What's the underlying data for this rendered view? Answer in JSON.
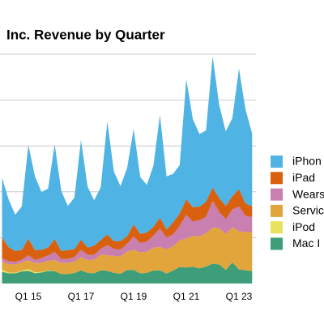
{
  "chart_data": {
    "type": "stacked-area",
    "title": "Inc. Revenue by Quarter",
    "categories": [
      null,
      null,
      null,
      null,
      "Q1 15",
      null,
      null,
      null,
      null,
      null,
      null,
      null,
      "Q1 17",
      null,
      null,
      null,
      null,
      null,
      null,
      null,
      "Q1 19",
      null,
      null,
      null,
      null,
      null,
      null,
      null,
      "Q1 21",
      null,
      null,
      null,
      null,
      null,
      null,
      null,
      "Q1 23",
      null,
      null
    ],
    "ylim": [
      0,
      125
    ],
    "yticks": [
      25,
      50,
      75,
      100,
      125
    ],
    "grid": true,
    "series": [
      {
        "name": "iPhon",
        "color": "#4fb3e3",
        "values": [
          32.5,
          26.1,
          19.8,
          23.7,
          51.2,
          40.3,
          31.4,
          32.2,
          51.6,
          32.9,
          24.0,
          28.2,
          54.4,
          33.2,
          24.8,
          28.8,
          61.6,
          38.0,
          29.9,
          37.2,
          52.0,
          31.1,
          26.0,
          33.4,
          56.0,
          29.0,
          26.4,
          26.4,
          65.6,
          47.9,
          39.6,
          38.9,
          71.6,
          50.6,
          40.7,
          42.6,
          65.8,
          51.3,
          39.7
        ]
      },
      {
        "name": "iPad",
        "color": "#d9600f",
        "values": [
          11.5,
          7.6,
          5.9,
          5.3,
          9.0,
          5.4,
          4.5,
          4.3,
          7.1,
          4.4,
          4.9,
          4.3,
          5.5,
          3.9,
          5.0,
          4.8,
          5.9,
          4.1,
          4.7,
          4.1,
          6.7,
          4.9,
          5.0,
          4.7,
          6.0,
          4.4,
          6.6,
          6.8,
          8.4,
          7.8,
          7.4,
          8.3,
          7.2,
          7.6,
          7.2,
          7.2,
          9.4,
          6.7,
          5.8
        ]
      },
      {
        "name": "Wears",
        "color": "#c97fb0",
        "values": [
          1.9,
          1.6,
          1.4,
          1.4,
          2.7,
          1.7,
          2.6,
          3.0,
          4.4,
          2.2,
          2.2,
          2.4,
          4.0,
          2.9,
          2.7,
          3.2,
          5.5,
          3.9,
          3.7,
          4.2,
          7.3,
          5.1,
          5.5,
          6.5,
          10.0,
          6.3,
          6.5,
          7.9,
          13.0,
          7.8,
          8.8,
          8.8,
          14.7,
          8.8,
          8.1,
          9.7,
          13.5,
          8.8,
          8.3
        ]
      },
      {
        "name": "Servic",
        "color": "#e2a53c",
        "values": [
          4.4,
          4.6,
          4.5,
          4.6,
          4.8,
          5.0,
          5.0,
          5.1,
          6.1,
          6.0,
          6.0,
          6.3,
          7.2,
          7.0,
          7.3,
          8.5,
          8.5,
          9.2,
          9.5,
          10.0,
          10.9,
          11.5,
          11.5,
          12.5,
          12.7,
          13.3,
          13.2,
          14.5,
          15.8,
          16.9,
          17.5,
          18.3,
          19.5,
          19.8,
          19.6,
          19.2,
          20.8,
          20.9,
          21.2
        ]
      },
      {
        "name": "iPod",
        "color": "#e9e25c",
        "values": [
          1.0,
          0.5,
          0.4,
          0.4,
          1.0,
          0.5,
          0.3,
          0.3,
          null,
          null,
          null,
          null,
          null,
          null,
          null,
          null,
          null,
          null,
          null,
          null,
          null,
          null,
          null,
          null,
          null,
          null,
          null,
          null,
          null,
          null,
          null,
          null,
          null,
          null,
          null,
          null,
          null,
          null,
          null
        ]
      },
      {
        "name": "Mac I",
        "color": "#3d9e79",
        "values": [
          6.4,
          5.5,
          5.5,
          6.6,
          6.9,
          5.6,
          6.0,
          6.9,
          6.7,
          5.1,
          5.2,
          5.7,
          7.2,
          5.8,
          5.6,
          7.2,
          6.9,
          5.8,
          5.3,
          7.4,
          7.4,
          5.5,
          5.8,
          7.1,
          7.2,
          5.4,
          7.1,
          9.0,
          8.7,
          9.1,
          8.2,
          9.2,
          10.9,
          10.4,
          7.4,
          11.5,
          7.7,
          7.2,
          6.8
        ]
      }
    ]
  }
}
